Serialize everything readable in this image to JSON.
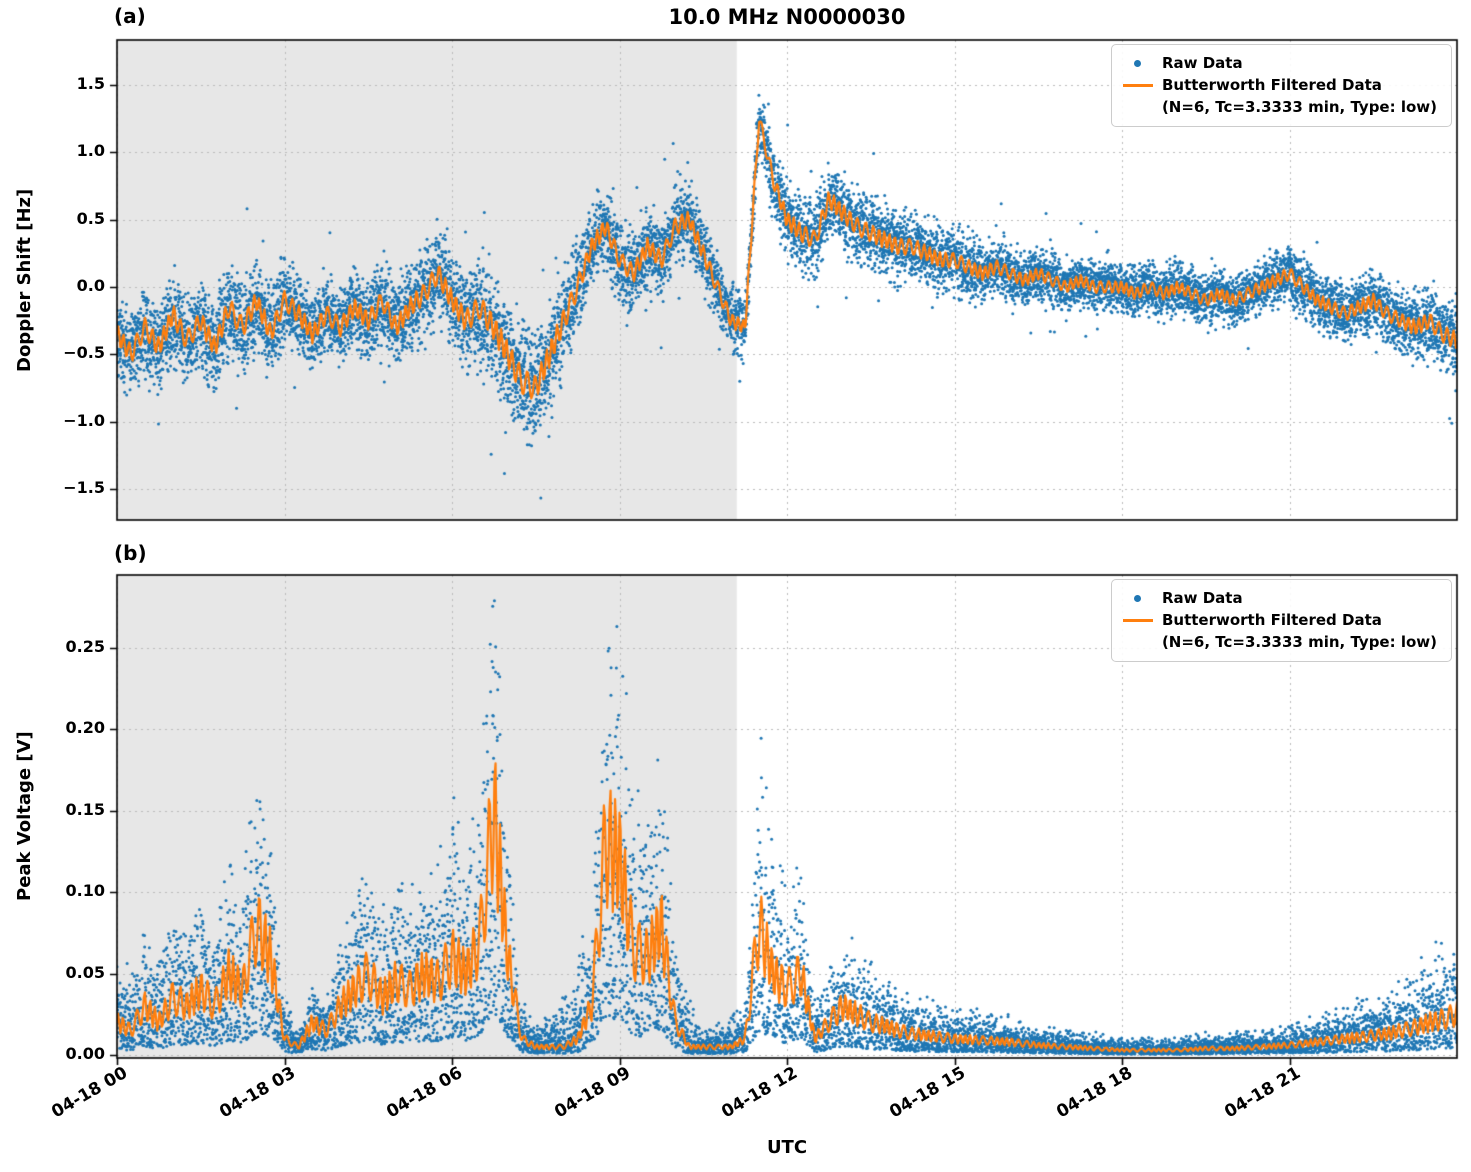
{
  "figure": {
    "title": "10.0 MHz N0000030",
    "xlabel": "UTC",
    "background": "#ffffff"
  },
  "colors": {
    "raw": "#1f77b4",
    "filtered": "#ff7f0e",
    "shade": "#e7e7e7",
    "grid": "#bbbbbb",
    "spine": "#000000"
  },
  "legend": {
    "raw_label": "Raw Data",
    "filtered_label": "Butterworth Filtered Data",
    "filtered_sublabel": "(N=6, Tc=3.3333 min, Type: low)",
    "position": "upper right"
  },
  "xaxis": {
    "label": "UTC",
    "range_hours": [
      0,
      24
    ],
    "tick_hours": [
      0,
      3,
      6,
      9,
      12,
      15,
      18,
      21
    ],
    "tick_labels": [
      "04-18 00",
      "04-18 03",
      "04-18 06",
      "04-18 09",
      "04-18 12",
      "04-18 15",
      "04-18 18",
      "04-18 21"
    ]
  },
  "chart_data": [
    {
      "type": "scatter",
      "panel": "(a)",
      "title": "10.0 MHz N0000030",
      "xlabel": "UTC",
      "ylabel": "Doppler Shift [Hz]",
      "xlim_hours": [
        0,
        24
      ],
      "ylim": [
        -1.75,
        1.85
      ],
      "yticks": [
        -1.5,
        -1.0,
        -0.5,
        0.0,
        0.5,
        1.0,
        1.5
      ],
      "ytick_labels": [
        "−1.5",
        "−1.0",
        "−0.5",
        "0.0",
        "0.5",
        "1.0",
        "1.5"
      ],
      "xtick_hours": [
        0,
        3,
        6,
        9,
        12,
        15,
        18,
        21
      ],
      "xtick_labels": [
        "04-18 00",
        "04-18 03",
        "04-18 06",
        "04-18 09",
        "04-18 12",
        "04-18 15",
        "04-18 18",
        "04-18 21"
      ],
      "grid": true,
      "legend_position": "upper right",
      "shaded_span_hours": [
        0,
        11.1
      ],
      "series": [
        {
          "name": "Raw Data",
          "plot": "scatter",
          "color": "#1f77b4",
          "n_points_rendered": 12000,
          "scatter_band_halfwidth_hz": [
            [
              0,
              0.32
            ],
            [
              2,
              0.35
            ],
            [
              4,
              0.3
            ],
            [
              6,
              0.35
            ],
            [
              7,
              0.45
            ],
            [
              8,
              0.4
            ],
            [
              8.5,
              0.3
            ],
            [
              10,
              0.3
            ],
            [
              11,
              0.25
            ],
            [
              11.5,
              0.22
            ],
            [
              12,
              0.3
            ],
            [
              13,
              0.3
            ],
            [
              14,
              0.28
            ],
            [
              15,
              0.25
            ],
            [
              16,
              0.22
            ],
            [
              17,
              0.2
            ],
            [
              19,
              0.2
            ],
            [
              21,
              0.22
            ],
            [
              23,
              0.25
            ],
            [
              24,
              0.3
            ]
          ]
        },
        {
          "name": "Butterworth Filtered Data (N=6, Tc=3.3333 min, Type: low)",
          "plot": "line",
          "color": "#ff7f0e",
          "x_start_hours": 0,
          "x_step_hours": 0.25,
          "values_hz": [
            -0.35,
            -0.5,
            -0.3,
            -0.45,
            -0.2,
            -0.4,
            -0.25,
            -0.45,
            -0.15,
            -0.3,
            -0.1,
            -0.35,
            -0.1,
            -0.2,
            -0.35,
            -0.2,
            -0.3,
            -0.15,
            -0.25,
            -0.1,
            -0.3,
            -0.15,
            -0.05,
            0.1,
            -0.1,
            -0.25,
            -0.15,
            -0.3,
            -0.5,
            -0.7,
            -0.75,
            -0.5,
            -0.25,
            0.0,
            0.3,
            0.45,
            0.2,
            0.1,
            0.3,
            0.2,
            0.45,
            0.5,
            0.25,
            0.0,
            -0.25,
            -0.3,
            1.25,
            0.8,
            0.5,
            0.4,
            0.35,
            0.65,
            0.55,
            0.45,
            0.4,
            0.35,
            0.3,
            0.3,
            0.25,
            0.2,
            0.2,
            0.15,
            0.1,
            0.15,
            0.1,
            0.05,
            0.1,
            0.05,
            0.0,
            0.05,
            0.0,
            0.0,
            0.0,
            -0.05,
            0.0,
            -0.05,
            0.0,
            -0.05,
            -0.1,
            -0.05,
            -0.1,
            -0.05,
            0.0,
            0.05,
            0.1,
            0.0,
            -0.1,
            -0.15,
            -0.2,
            -0.15,
            -0.1,
            -0.2,
            -0.25,
            -0.3,
            -0.25,
            -0.35,
            -0.4
          ]
        }
      ]
    },
    {
      "type": "scatter",
      "panel": "(b)",
      "title": "10.0 MHz N0000030",
      "xlabel": "UTC",
      "ylabel": "Peak Voltage [V]",
      "xlim_hours": [
        0,
        24
      ],
      "ylim": [
        -0.005,
        0.295
      ],
      "yticks": [
        0.0,
        0.05,
        0.1,
        0.15,
        0.2,
        0.25
      ],
      "ytick_labels": [
        "0.00",
        "0.05",
        "0.10",
        "0.15",
        "0.20",
        "0.25"
      ],
      "xtick_hours": [
        0,
        3,
        6,
        9,
        12,
        15,
        18,
        21
      ],
      "xtick_labels": [
        "04-18 00",
        "04-18 03",
        "04-18 06",
        "04-18 09",
        "04-18 12",
        "04-18 15",
        "04-18 18",
        "04-18 21"
      ],
      "grid": true,
      "legend_position": "upper right",
      "shaded_span_hours": [
        0,
        11.1
      ],
      "series": [
        {
          "name": "Raw Data",
          "plot": "scatter",
          "color": "#1f77b4",
          "n_points_rendered": 9000,
          "scatter_spike_amplitude_v": [
            [
              0,
              0.03
            ],
            [
              2.5,
              0.05
            ],
            [
              3.2,
              0.01
            ],
            [
              5,
              0.04
            ],
            [
              6.5,
              0.06
            ],
            [
              7.5,
              0.01
            ],
            [
              8.75,
              0.06
            ],
            [
              9.75,
              0.06
            ],
            [
              10.5,
              0.008
            ],
            [
              11.25,
              0.02
            ],
            [
              11.5,
              0.07
            ],
            [
              12.5,
              0.02
            ],
            [
              13,
              0.025
            ],
            [
              14,
              0.02
            ],
            [
              15,
              0.015
            ],
            [
              16,
              0.01
            ],
            [
              17,
              0.008
            ],
            [
              18,
              0.006
            ],
            [
              19,
              0.006
            ],
            [
              20,
              0.008
            ],
            [
              21,
              0.01
            ],
            [
              22,
              0.015
            ],
            [
              23,
              0.025
            ],
            [
              24,
              0.035
            ]
          ]
        },
        {
          "name": "Butterworth Filtered Data (N=6, Tc=3.3333 min, Type: low)",
          "plot": "line",
          "color": "#ff7f0e",
          "x_start_hours": 0,
          "x_step_hours": 0.25,
          "values_v": [
            0.02,
            0.015,
            0.03,
            0.02,
            0.035,
            0.03,
            0.04,
            0.03,
            0.05,
            0.04,
            0.08,
            0.06,
            0.01,
            0.005,
            0.02,
            0.015,
            0.03,
            0.04,
            0.05,
            0.035,
            0.045,
            0.04,
            0.05,
            0.045,
            0.06,
            0.05,
            0.07,
            0.15,
            0.06,
            0.01,
            0.005,
            0.005,
            0.005,
            0.01,
            0.03,
            0.13,
            0.12,
            0.065,
            0.06,
            0.08,
            0.02,
            0.005,
            0.005,
            0.005,
            0.005,
            0.01,
            0.08,
            0.05,
            0.04,
            0.05,
            0.01,
            0.02,
            0.03,
            0.025,
            0.02,
            0.018,
            0.015,
            0.013,
            0.012,
            0.011,
            0.01,
            0.0095,
            0.009,
            0.0085,
            0.008,
            0.007,
            0.006,
            0.0055,
            0.005,
            0.0045,
            0.004,
            0.0035,
            0.003,
            0.003,
            0.003,
            0.003,
            0.003,
            0.0035,
            0.004,
            0.004,
            0.004,
            0.0045,
            0.005,
            0.0055,
            0.006,
            0.007,
            0.008,
            0.009,
            0.01,
            0.011,
            0.012,
            0.013,
            0.015,
            0.017,
            0.02,
            0.022,
            0.025
          ]
        }
      ]
    }
  ]
}
